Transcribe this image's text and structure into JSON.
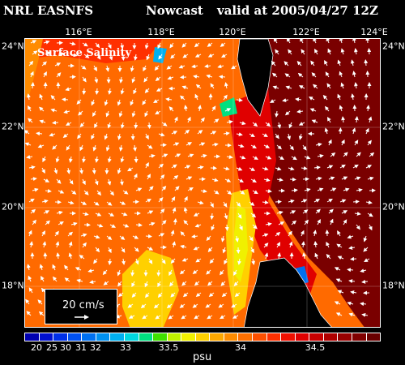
{
  "header": {
    "model": "NRL EASNFS",
    "kind": "Nowcast",
    "valid": "valid at 2005/04/27 12Z"
  },
  "map": {
    "title": "Surface Salinity",
    "lon_ticks": [
      "116°E",
      "118°E",
      "120°E",
      "122°E",
      "124°E"
    ],
    "lat_ticks_left": [
      "24°N",
      "22°N",
      "20°N",
      "18°N"
    ],
    "lat_ticks_right": [
      "24°N",
      "22°N",
      "20°N",
      "18°N"
    ],
    "scale_label": "20 cm/s",
    "land_color": "#000000",
    "coast_color": "#ffffff",
    "current_vector_color": "#ffffff"
  },
  "colorbar": {
    "unit": "psu",
    "labels": [
      "20",
      "25",
      "30",
      "31",
      "32",
      "33",
      "33.5",
      "34",
      "34.5"
    ],
    "colors": [
      "#0000b0",
      "#0010d0",
      "#0030e8",
      "#0050f0",
      "#0070f0",
      "#0090f0",
      "#00b0f0",
      "#00d8e0",
      "#00e080",
      "#40e000",
      "#c0f000",
      "#f0f000",
      "#ffd000",
      "#ffa800",
      "#ff8c00",
      "#ff7000",
      "#ff5000",
      "#ff3000",
      "#f01000",
      "#e00000",
      "#c80000",
      "#b00000",
      "#980000",
      "#800000",
      "#680000"
    ]
  }
}
